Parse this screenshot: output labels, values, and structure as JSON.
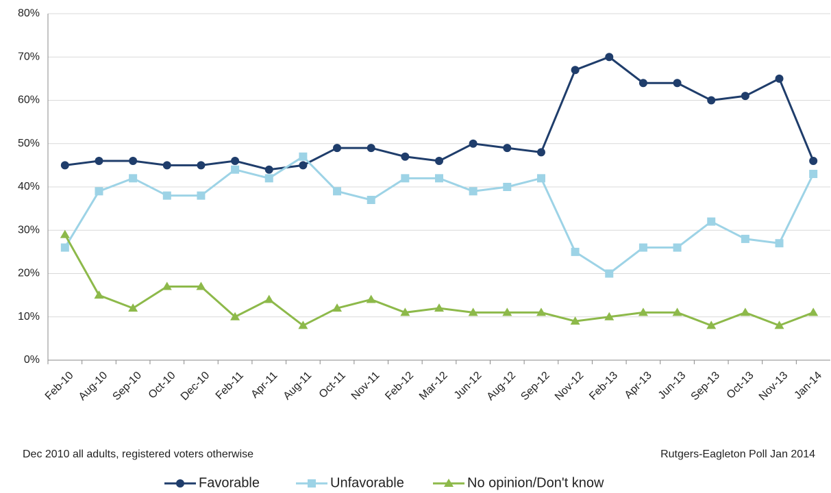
{
  "chart_data": {
    "type": "line",
    "categories": [
      "Feb-10",
      "Aug-10",
      "Sep-10",
      "Oct-10",
      "Dec-10",
      "Feb-11",
      "Apr-11",
      "Aug-11",
      "Oct-11",
      "Nov-11",
      "Feb-12",
      "Mar-12",
      "Jun-12",
      "Aug-12",
      "Sep-12",
      "Nov-12",
      "Feb-13",
      "Apr-13",
      "Jun-13",
      "Sep-13",
      "Oct-13",
      "Nov-13",
      "Jan-14"
    ],
    "series": [
      {
        "name": "Favorable",
        "color": "#1f3d6b",
        "marker": "circle",
        "values": [
          45,
          46,
          46,
          45,
          45,
          46,
          44,
          45,
          49,
          49,
          47,
          46,
          50,
          49,
          48,
          67,
          70,
          64,
          64,
          60,
          61,
          65,
          46
        ]
      },
      {
        "name": "Unfavorable",
        "color": "#9dd3e6",
        "marker": "square",
        "values": [
          26,
          39,
          42,
          38,
          38,
          44,
          42,
          47,
          39,
          37,
          42,
          42,
          39,
          40,
          42,
          25,
          20,
          26,
          26,
          32,
          28,
          27,
          43
        ]
      },
      {
        "name": "No opinion/Don't know",
        "color": "#8db94a",
        "marker": "triangle",
        "values": [
          29,
          15,
          12,
          17,
          17,
          10,
          14,
          8,
          12,
          14,
          11,
          12,
          11,
          11,
          11,
          9,
          10,
          11,
          11,
          8,
          11,
          8,
          11
        ]
      }
    ],
    "ylim": [
      0,
      80
    ],
    "yticks": [
      {
        "value": 0,
        "label": "0%"
      },
      {
        "value": 10,
        "label": "10%"
      },
      {
        "value": 20,
        "label": "20%"
      },
      {
        "value": 30,
        "label": "30%"
      },
      {
        "value": 40,
        "label": "40%"
      },
      {
        "value": 50,
        "label": "50%"
      },
      {
        "value": 60,
        "label": "60%"
      },
      {
        "value": 70,
        "label": "70%"
      },
      {
        "value": 80,
        "label": "80%"
      }
    ],
    "grid": true,
    "legend": "bottom",
    "annotations": [
      "Dec 2010 all adults, registered voters otherwise",
      "Rutgers-Eagleton Poll Jan 2014"
    ]
  }
}
